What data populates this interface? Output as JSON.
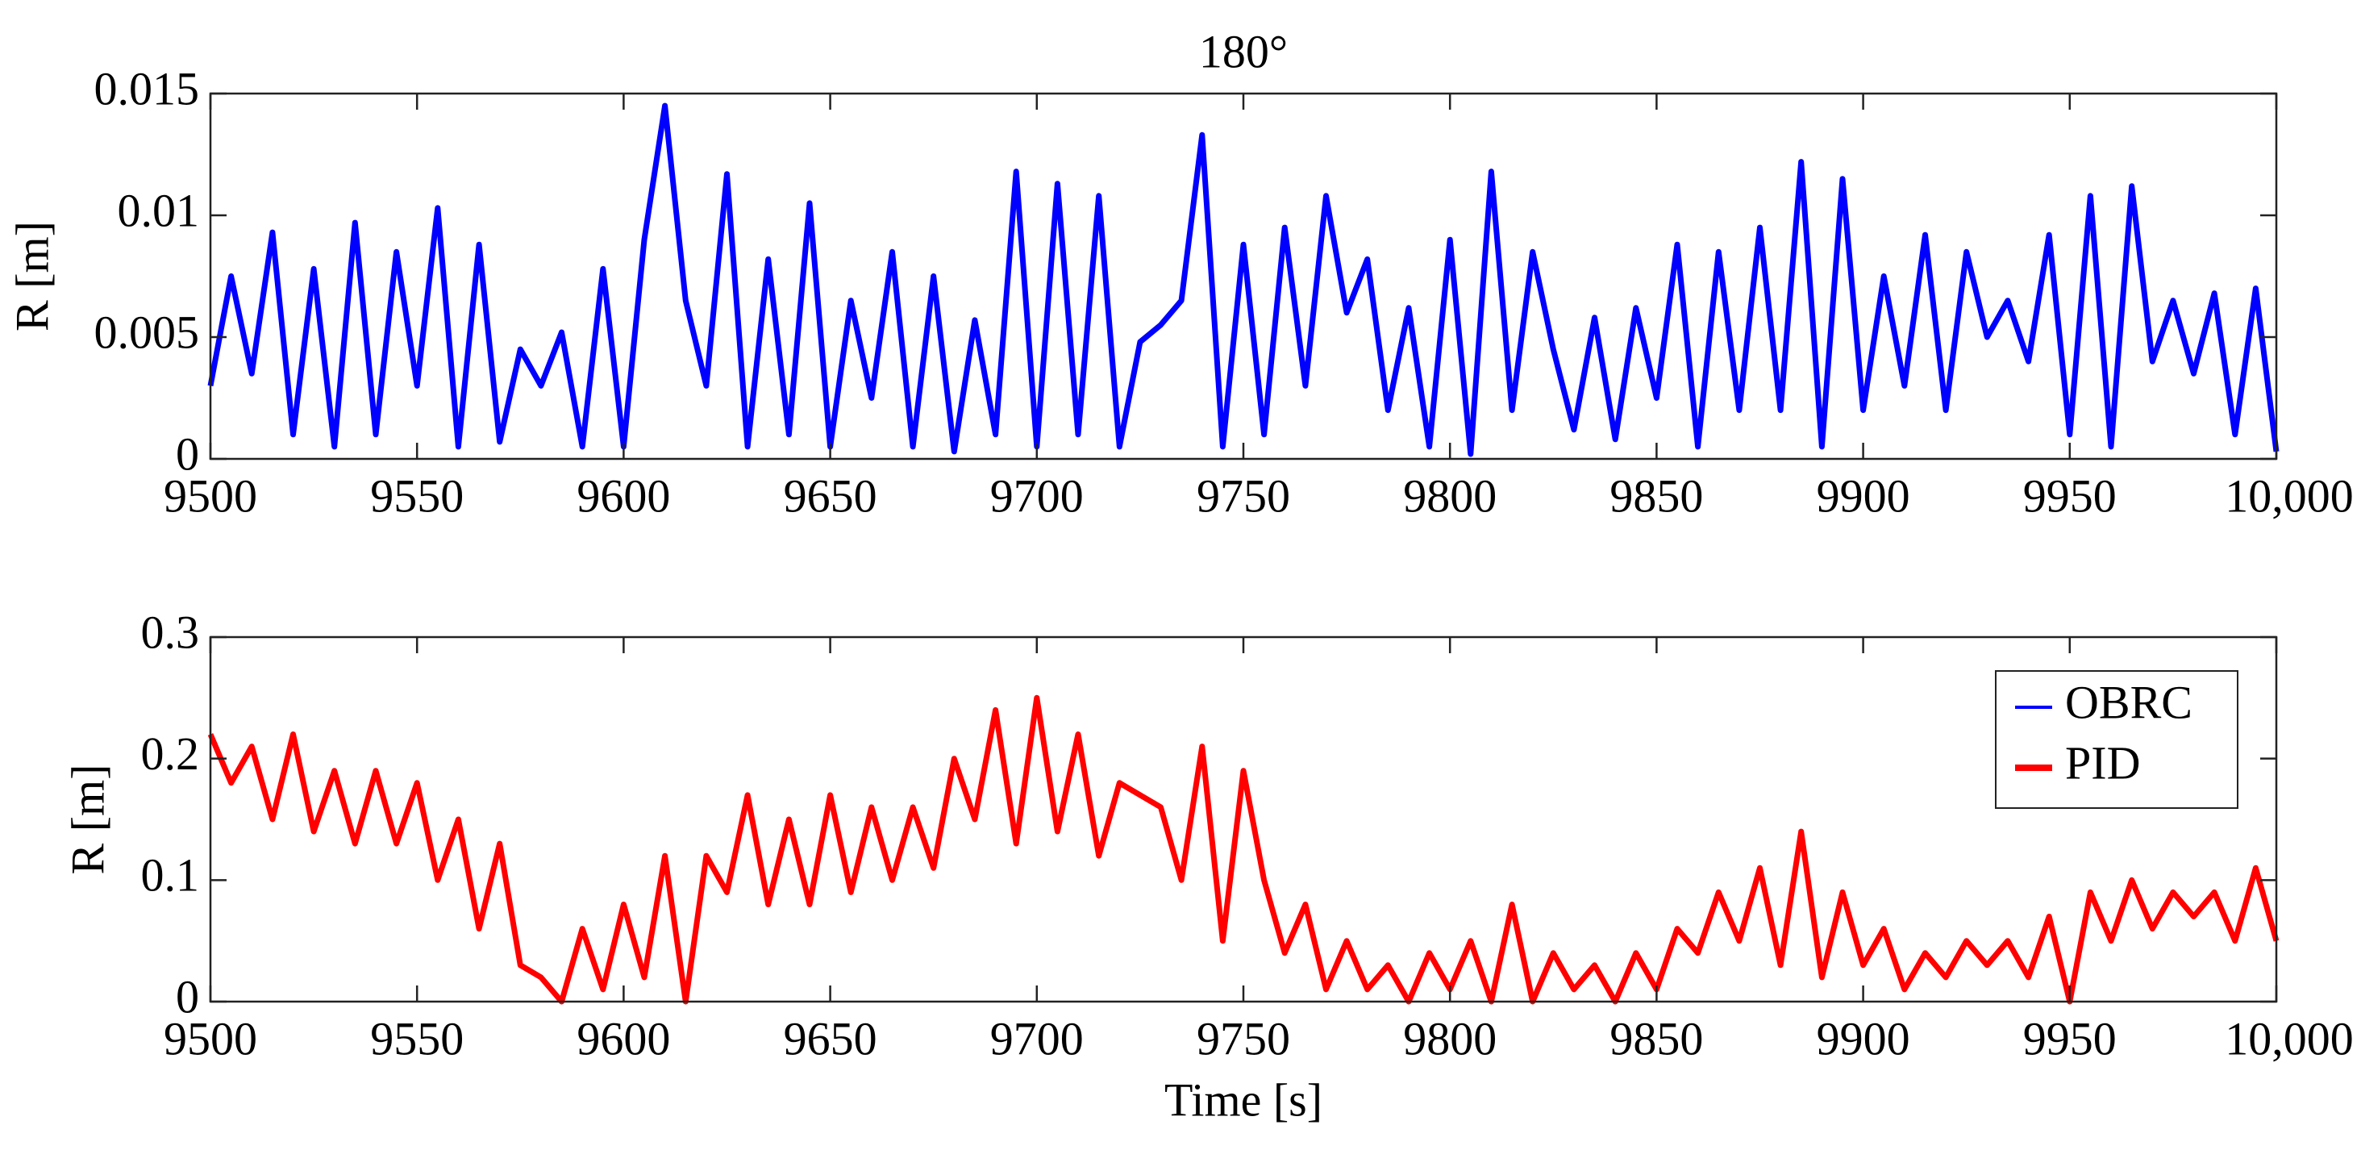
{
  "chart_data": [
    {
      "type": "line",
      "title": "180°",
      "ylabel": "R [m]",
      "x": [
        9500,
        9505,
        9510,
        9515,
        9520,
        9525,
        9530,
        9535,
        9540,
        9545,
        9550,
        9555,
        9560,
        9565,
        9570,
        9575,
        9580,
        9585,
        9590,
        9595,
        9600,
        9605,
        9610,
        9615,
        9620,
        9625,
        9630,
        9635,
        9640,
        9645,
        9650,
        9655,
        9660,
        9665,
        9670,
        9675,
        9680,
        9685,
        9690,
        9695,
        9700,
        9705,
        9710,
        9715,
        9720,
        9725,
        9730,
        9735,
        9740,
        9745,
        9750,
        9755,
        9760,
        9765,
        9770,
        9775,
        9780,
        9785,
        9790,
        9795,
        9800,
        9805,
        9810,
        9815,
        9820,
        9825,
        9830,
        9835,
        9840,
        9845,
        9850,
        9855,
        9860,
        9865,
        9870,
        9875,
        9880,
        9885,
        9890,
        9895,
        9900,
        9905,
        9910,
        9915,
        9920,
        9925,
        9930,
        9935,
        9940,
        9945,
        9950,
        9955,
        9960,
        9965,
        9970,
        9975,
        9980,
        9985,
        9990,
        9995,
        10000
      ],
      "series": [
        {
          "name": "OBRC",
          "color": "#0000ff",
          "values": [
            0.003,
            0.0075,
            0.0035,
            0.0093,
            0.001,
            0.0078,
            0.0005,
            0.0097,
            0.001,
            0.0085,
            0.003,
            0.0103,
            0.0005,
            0.0088,
            0.0007,
            0.0045,
            0.003,
            0.0052,
            0.0005,
            0.0078,
            0.0005,
            0.009,
            0.0145,
            0.0065,
            0.003,
            0.0117,
            0.0005,
            0.0082,
            0.001,
            0.0105,
            0.0005,
            0.0065,
            0.0025,
            0.0085,
            0.0005,
            0.0075,
            0.0003,
            0.0057,
            0.001,
            0.0118,
            0.0005,
            0.0113,
            0.001,
            0.0108,
            0.0005,
            0.0048,
            0.0055,
            0.0065,
            0.0133,
            0.0005,
            0.0088,
            0.001,
            0.0095,
            0.003,
            0.0108,
            0.006,
            0.0082,
            0.002,
            0.0062,
            0.0005,
            0.009,
            0.0002,
            0.0118,
            0.002,
            0.0085,
            0.0045,
            0.0012,
            0.0058,
            0.0008,
            0.0062,
            0.0025,
            0.0088,
            0.0005,
            0.0085,
            0.002,
            0.0095,
            0.002,
            0.0122,
            0.0005,
            0.0115,
            0.002,
            0.0075,
            0.003,
            0.0092,
            0.002,
            0.0085,
            0.005,
            0.0065,
            0.004,
            0.0092,
            0.001,
            0.0108,
            0.0005,
            0.0112,
            0.004,
            0.0065,
            0.0035,
            0.0068,
            0.001,
            0.007,
            0.0003
          ]
        }
      ],
      "xlim": [
        9500,
        10000
      ],
      "xticks": [
        9500,
        9550,
        9600,
        9650,
        9700,
        9750,
        9800,
        9850,
        9900,
        9950,
        {
          "value": 10000,
          "label": "10,000"
        }
      ],
      "ylim": [
        0,
        0.015
      ],
      "yticks": [
        0,
        0.005,
        0.01,
        0.015
      ],
      "grid": false
    },
    {
      "type": "line",
      "ylabel": "R [m]",
      "xlabel": "Time [s]",
      "x": [
        9500,
        9505,
        9510,
        9515,
        9520,
        9525,
        9530,
        9535,
        9540,
        9545,
        9550,
        9555,
        9560,
        9565,
        9570,
        9575,
        9580,
        9585,
        9590,
        9595,
        9600,
        9605,
        9610,
        9615,
        9620,
        9625,
        9630,
        9635,
        9640,
        9645,
        9650,
        9655,
        9660,
        9665,
        9670,
        9675,
        9680,
        9685,
        9690,
        9695,
        9700,
        9705,
        9710,
        9715,
        9720,
        9725,
        9730,
        9735,
        9740,
        9745,
        9750,
        9755,
        9760,
        9765,
        9770,
        9775,
        9780,
        9785,
        9790,
        9795,
        9800,
        9805,
        9810,
        9815,
        9820,
        9825,
        9830,
        9835,
        9840,
        9845,
        9850,
        9855,
        9860,
        9865,
        9870,
        9875,
        9880,
        9885,
        9890,
        9895,
        9900,
        9905,
        9910,
        9915,
        9920,
        9925,
        9930,
        9935,
        9940,
        9945,
        9950,
        9955,
        9960,
        9965,
        9970,
        9975,
        9980,
        9985,
        9990,
        9995,
        10000
      ],
      "series": [
        {
          "name": "PID",
          "color": "#ff0000",
          "values": [
            0.22,
            0.18,
            0.21,
            0.15,
            0.22,
            0.14,
            0.19,
            0.13,
            0.19,
            0.13,
            0.18,
            0.1,
            0.15,
            0.06,
            0.13,
            0.03,
            0.02,
            0.0,
            0.06,
            0.01,
            0.08,
            0.02,
            0.12,
            0.0,
            0.12,
            0.09,
            0.17,
            0.08,
            0.15,
            0.08,
            0.17,
            0.09,
            0.16,
            0.1,
            0.16,
            0.11,
            0.2,
            0.15,
            0.24,
            0.13,
            0.25,
            0.14,
            0.22,
            0.12,
            0.18,
            0.17,
            0.16,
            0.1,
            0.21,
            0.05,
            0.19,
            0.1,
            0.04,
            0.08,
            0.01,
            0.05,
            0.01,
            0.03,
            0.0,
            0.04,
            0.01,
            0.05,
            0.0,
            0.08,
            0.0,
            0.04,
            0.01,
            0.03,
            0.0,
            0.04,
            0.01,
            0.06,
            0.04,
            0.09,
            0.05,
            0.11,
            0.03,
            0.14,
            0.02,
            0.09,
            0.03,
            0.06,
            0.01,
            0.04,
            0.02,
            0.05,
            0.03,
            0.05,
            0.02,
            0.07,
            0.0,
            0.09,
            0.05,
            0.1,
            0.06,
            0.09,
            0.07,
            0.09,
            0.05,
            0.11,
            0.05
          ]
        }
      ],
      "xlim": [
        9500,
        10000
      ],
      "xticks": [
        9500,
        9550,
        9600,
        9650,
        9700,
        9750,
        9800,
        9850,
        9900,
        9950,
        {
          "value": 10000,
          "label": "10,000"
        }
      ],
      "ylim": [
        0,
        0.3
      ],
      "yticks": [
        0,
        0.1,
        0.2,
        0.3
      ],
      "grid": false,
      "legend": "upper right"
    }
  ]
}
